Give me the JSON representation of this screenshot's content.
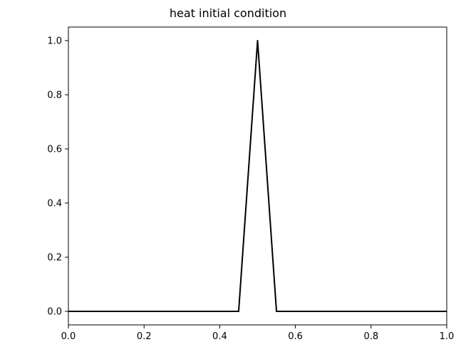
{
  "chart_data": {
    "type": "line",
    "title": "heat initial condition",
    "xlabel": "",
    "ylabel": "",
    "xlim": [
      0.0,
      1.0
    ],
    "ylim": [
      -0.05,
      1.05
    ],
    "grid": false,
    "x_ticks": [
      0.0,
      0.2,
      0.4,
      0.6,
      0.8,
      1.0
    ],
    "x_tick_labels": [
      "0.0",
      "0.2",
      "0.4",
      "0.6",
      "0.8",
      "1.0"
    ],
    "y_ticks": [
      0.0,
      0.2,
      0.4,
      0.6,
      0.8,
      1.0
    ],
    "y_tick_labels": [
      "0.0",
      "0.2",
      "0.4",
      "0.6",
      "0.8",
      "1.0"
    ],
    "series": [
      {
        "color": "#000000",
        "x": [
          0.0,
          0.45,
          0.5,
          0.55,
          1.0
        ],
        "y": [
          0.0,
          0.0,
          1.0,
          0.0,
          0.0
        ]
      }
    ]
  }
}
